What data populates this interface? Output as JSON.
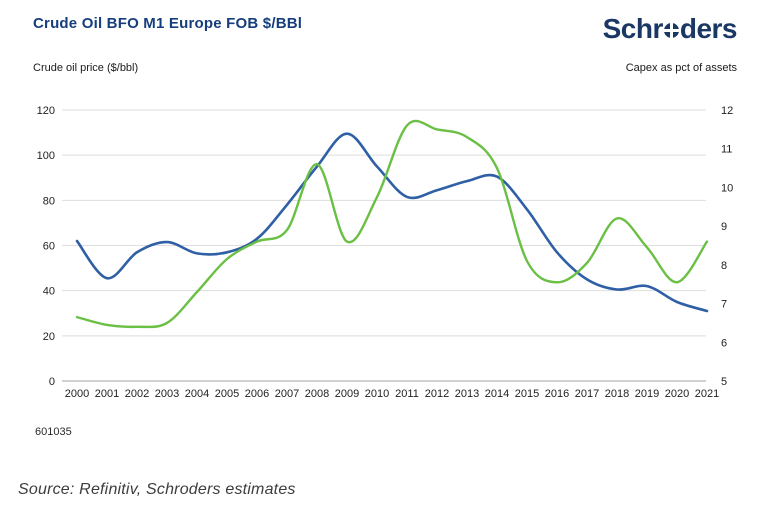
{
  "header": {
    "title": "Crude Oil BFO M1 Europe FOB $/BBl",
    "logo_text_pre": "Schr",
    "logo_text_post": "ders",
    "logo_full": "Schroders"
  },
  "axes_captions": {
    "left": "Crude oil price ($/bbl)",
    "right": "Capex as pct of assets"
  },
  "colors": {
    "title_blue": "#163e7d",
    "logo_navy": "#1b3764",
    "crude_oil_line": "#2f5fa5",
    "capex_line": "#6abf45",
    "grid_line": "#dedede",
    "axis_line": "#a3a3a3",
    "tick_text": "#1f1f1f"
  },
  "chart_data": {
    "type": "line",
    "title": "Crude Oil BFO M1 Europe FOB $/BBl",
    "x": [
      2000,
      2001,
      2002,
      2003,
      2004,
      2005,
      2006,
      2007,
      2008,
      2009,
      2010,
      2011,
      2012,
      2013,
      2014,
      2015,
      2016,
      2017,
      2018,
      2019,
      2020,
      2021
    ],
    "series": [
      {
        "name": "Crude oil price ($/bbl)",
        "axis": "left",
        "color": "#2f5fa5",
        "values": [
          62,
          45.5,
          57,
          61.5,
          56.5,
          57,
          63,
          78,
          95,
          109.5,
          95,
          81.5,
          84.5,
          88.5,
          90.5,
          76,
          57,
          45,
          40.5,
          42,
          35,
          31
        ]
      },
      {
        "name": "Capex as pct of assets",
        "axis": "right",
        "color": "#6abf45",
        "values": [
          6.65,
          6.45,
          6.4,
          6.5,
          7.3,
          8.15,
          8.6,
          8.9,
          10.6,
          8.6,
          9.75,
          11.6,
          11.5,
          11.3,
          10.5,
          8.1,
          7.55,
          8.05,
          9.2,
          8.45,
          7.55,
          8.6
        ]
      }
    ],
    "left_axis": {
      "label": "Crude oil price ($/bbl)",
      "ticks": [
        0,
        20,
        40,
        60,
        80,
        100,
        120
      ],
      "range": [
        0,
        120
      ]
    },
    "right_axis": {
      "label": "Capex as pct of assets",
      "ticks": [
        5,
        6,
        7,
        8,
        9,
        10,
        11,
        12
      ],
      "range": [
        5,
        12
      ]
    },
    "grid": "horizontal",
    "legend": "none"
  },
  "footer": {
    "figure_number": "601035",
    "source": "Source: Refinitiv, Schroders estimates"
  }
}
